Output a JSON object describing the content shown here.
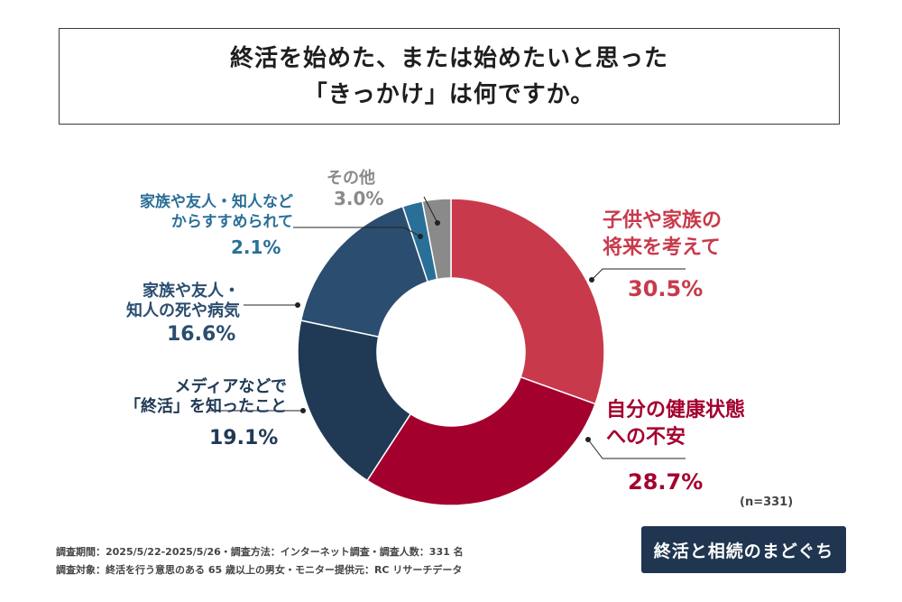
{
  "title": {
    "line1": "終活を始めた、または始めたいと思った",
    "line2": "「きっかけ」は何ですか。"
  },
  "chart_data": {
    "type": "pie",
    "categories": [
      "子供や家族の将来を考えて",
      "自分の健康状態への不安",
      "メディアなどで「終活」を知ったこと",
      "家族や友人・知人の死や病気",
      "家族や友人・知人などからすすめられて",
      "その他"
    ],
    "values": [
      30.5,
      28.7,
      19.1,
      16.6,
      2.1,
      3.0
    ],
    "colors": [
      "#c83a4b",
      "#a4002e",
      "#203a56",
      "#2b4d6f",
      "#2a6f97",
      "#8a8a8a"
    ]
  },
  "labels": {
    "children": {
      "line1": "子供や家族の",
      "line2": "将来を考えて",
      "pct": "30.5%"
    },
    "health": {
      "line1": "自分の健康状態",
      "line2": "への不安",
      "pct": "28.7%"
    },
    "media": {
      "line1": "メディアなどで",
      "line2": "「終活」を知ったこと",
      "pct": "19.1%"
    },
    "death": {
      "line1": "家族や友人・",
      "line2": "知人の死や病気",
      "pct": "16.6%"
    },
    "recommend": {
      "line1": "家族や友人・知人などの",
      "line2": "からすすめられて",
      "pct": "2.1%"
    },
    "other": {
      "line1": "その他",
      "pct": "3.0%"
    }
  },
  "n_label": "(n=331)",
  "footer": {
    "line1": "調査期間：2025/5/22-2025/5/26・調査方法：インターネット調査・調査人数：331 名",
    "line2": "調査対象：終活を行う意思のある 65 歳以上の男女・モニター提供元：RC リサーチデータ"
  },
  "logo_text": "終活と相続のまどぐち"
}
